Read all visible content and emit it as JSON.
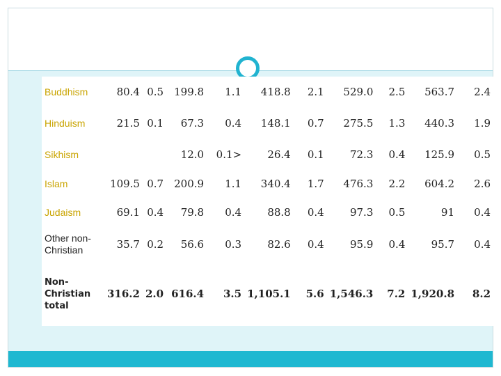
{
  "rows": [
    {
      "label": "Buddhism",
      "values": [
        "80.4",
        "0.5",
        "199.8",
        "1.1",
        "418.8",
        "2.1",
        "529.0",
        "2.5",
        "563.7",
        "2.4"
      ]
    },
    {
      "label": "Hinduism",
      "values": [
        "21.5",
        "0.1",
        "67.3",
        "0.4",
        "148.1",
        "0.7",
        "275.5",
        "1.3",
        "440.3",
        "1.9"
      ]
    },
    {
      "label": "Sikhism",
      "values": [
        "",
        "",
        "12.0",
        "0.1>",
        "26.4",
        "0.1",
        "72.3",
        "0.4",
        "125.9",
        "0.5"
      ]
    },
    {
      "label": "Islam",
      "values": [
        "109.5",
        "0.7",
        "200.9",
        "1.1",
        "340.4",
        "1.7",
        "476.3",
        "2.2",
        "604.2",
        "2.6"
      ]
    },
    {
      "label": "Judaism",
      "values": [
        "69.1",
        "0.4",
        "79.8",
        "0.4",
        "88.8",
        "0.4",
        "97.3",
        "0.5",
        "91",
        "0.4"
      ]
    },
    {
      "label": "Other non-Christian",
      "values": [
        "35.7",
        "0.2",
        "56.6",
        "0.3",
        "82.6",
        "0.4",
        "95.9",
        "0.4",
        "95.7",
        "0.4"
      ]
    },
    {
      "label": "Non-Christian total",
      "values": [
        "316.2",
        "2.0",
        "616.4",
        "3.5",
        "1,105.1",
        "5.6",
        "1,546.3",
        "7.2",
        "1,920.8",
        "8.2"
      ]
    }
  ]
}
